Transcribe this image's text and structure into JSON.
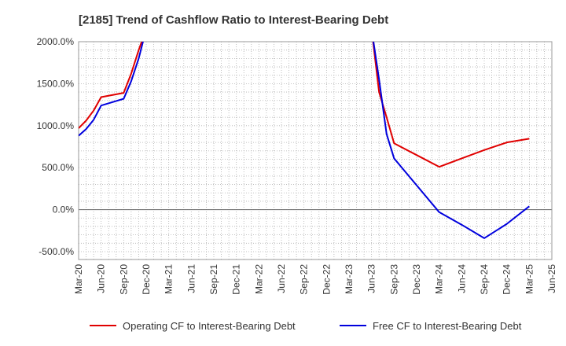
{
  "chart_data": {
    "type": "line",
    "title": "[2185]  Trend of Cashflow Ratio to Interest-Bearing Debt",
    "xlabel": "",
    "ylabel": "",
    "x_ticks": [
      "Mar-20",
      "Jun-20",
      "Sep-20",
      "Dec-20",
      "Mar-21",
      "Jun-21",
      "Sep-21",
      "Dec-21",
      "Mar-22",
      "Jun-22",
      "Sep-22",
      "Dec-22",
      "Mar-23",
      "Jun-23",
      "Sep-23",
      "Dec-23",
      "Mar-24",
      "Jun-24",
      "Sep-24",
      "Dec-24",
      "Mar-25",
      "Jun-25"
    ],
    "y_ticks": [
      "2000.0%",
      "1500.0%",
      "1000.0%",
      "500.0%",
      "0.0%",
      "-500.0%"
    ],
    "y_tick_values": [
      2000,
      1500,
      1000,
      500,
      0,
      -500
    ],
    "ylim": [
      -600,
      2000
    ],
    "grid": true,
    "legend_position": "bottom",
    "series": [
      {
        "name": "Operating CF to Interest-Bearing Debt",
        "color": "#e00000",
        "points": [
          [
            "Mar-20",
            970
          ],
          [
            "Apr-20",
            1060
          ],
          [
            "May-20",
            1180
          ],
          [
            "Jun-20",
            1340
          ],
          [
            "Sep-20",
            1390
          ],
          [
            "Oct-20",
            1620
          ],
          [
            "Nov-20",
            1900
          ],
          [
            "Dec-20",
            2150
          ],
          [
            "Jun-23",
            2150
          ],
          [
            "Jul-23",
            1400
          ],
          [
            "Aug-23",
            1100
          ],
          [
            "Sep-23",
            790
          ],
          [
            "Dec-23",
            650
          ],
          [
            "Mar-24",
            510
          ],
          [
            "Jun-24",
            610
          ],
          [
            "Sep-24",
            710
          ],
          [
            "Dec-24",
            800
          ],
          [
            "Mar-25",
            845
          ]
        ]
      },
      {
        "name": "Free CF to Interest-Bearing Debt",
        "color": "#0000dd",
        "points": [
          [
            "Mar-20",
            880
          ],
          [
            "Apr-20",
            960
          ],
          [
            "May-20",
            1070
          ],
          [
            "Jun-20",
            1240
          ],
          [
            "Sep-20",
            1320
          ],
          [
            "Oct-20",
            1530
          ],
          [
            "Nov-20",
            1800
          ],
          [
            "Dec-20",
            2150
          ],
          [
            "Jun-23",
            2150
          ],
          [
            "Jul-23",
            1550
          ],
          [
            "Aug-23",
            900
          ],
          [
            "Sep-23",
            610
          ],
          [
            "Dec-23",
            290
          ],
          [
            "Mar-24",
            -30
          ],
          [
            "Jun-24",
            -180
          ],
          [
            "Sep-24",
            -340
          ],
          [
            "Dec-24",
            -170
          ],
          [
            "Mar-25",
            40
          ]
        ]
      }
    ]
  }
}
